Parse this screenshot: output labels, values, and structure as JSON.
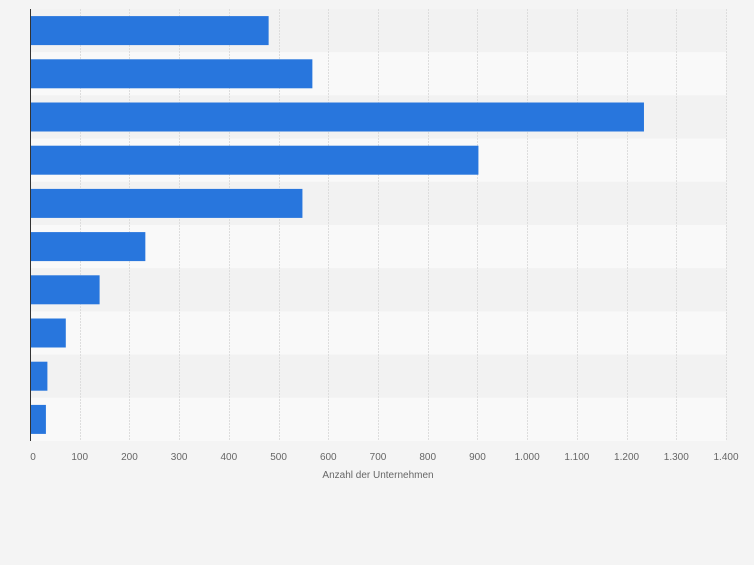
{
  "chart_data": {
    "type": "bar",
    "orientation": "horizontal",
    "categories": [
      "",
      "",
      "",
      "",
      "",
      "",
      "",
      "",
      "",
      ""
    ],
    "values": [
      480,
      568,
      1235,
      902,
      548,
      232,
      140,
      72,
      35,
      32
    ],
    "xlabel": "Anzahl der Unternehmen",
    "xlim": [
      0,
      1400
    ],
    "xticks": [
      0,
      100,
      200,
      300,
      400,
      500,
      600,
      700,
      800,
      900,
      1000,
      1100,
      1200,
      1300,
      1400
    ],
    "xtick_labels": [
      "0",
      "100",
      "200",
      "300",
      "400",
      "500",
      "600",
      "700",
      "800",
      "900",
      "1.000",
      "1.100",
      "1.200",
      "1.300",
      "1.400"
    ],
    "grid": true,
    "bar_color": "#2876dd",
    "band_colors": [
      "#f2f2f2",
      "#f9f9f9"
    ],
    "gridline_color": "#dddddd"
  }
}
